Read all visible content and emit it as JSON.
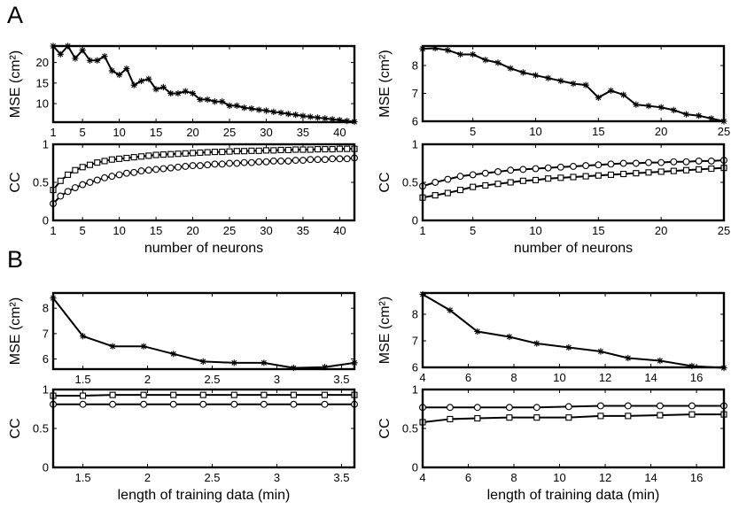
{
  "figure": {
    "panel_labels": [
      "A",
      "B"
    ],
    "line_color": "#000000"
  },
  "chart_data": [
    {
      "id": "A_left_mse",
      "type": "line",
      "title": "",
      "xlabel": "",
      "ylabel": "MSE (cm²)",
      "xlim": [
        1,
        42
      ],
      "ylim": [
        5.5,
        24
      ],
      "xticks": [
        1,
        5,
        10,
        15,
        20,
        25,
        30,
        35,
        40
      ],
      "yticks": [
        10,
        15,
        20
      ],
      "series": [
        {
          "marker": "star",
          "x": [
            1,
            2,
            3,
            4,
            5,
            6,
            7,
            8,
            9,
            10,
            11,
            12,
            13,
            14,
            15,
            16,
            17,
            18,
            19,
            20,
            21,
            22,
            23,
            24,
            25,
            26,
            27,
            28,
            29,
            30,
            31,
            32,
            33,
            34,
            35,
            36,
            37,
            38,
            39,
            40,
            41,
            42
          ],
          "y": [
            24,
            22,
            24,
            21,
            23,
            20.5,
            20.5,
            21.5,
            18,
            17,
            18.5,
            14.5,
            15.5,
            16,
            13.5,
            14,
            12.5,
            12.5,
            13,
            12.5,
            11,
            11,
            10.5,
            10.5,
            9.5,
            9.5,
            9,
            8.8,
            8.5,
            8.3,
            8,
            7.8,
            7.5,
            7.3,
            7,
            6.8,
            6.6,
            6.4,
            6.2,
            6,
            5.8,
            5.6
          ]
        }
      ]
    },
    {
      "id": "A_left_cc",
      "type": "line",
      "title": "",
      "xlabel": "number of neurons",
      "ylabel": "CC",
      "xlim": [
        1,
        42
      ],
      "ylim": [
        0,
        1
      ],
      "xticks": [
        1,
        5,
        10,
        15,
        20,
        25,
        30,
        35,
        40
      ],
      "yticks": [
        0,
        0.5,
        1
      ],
      "series": [
        {
          "marker": "square",
          "x": [
            1,
            2,
            3,
            4,
            5,
            6,
            7,
            8,
            9,
            10,
            11,
            12,
            13,
            14,
            15,
            16,
            17,
            18,
            19,
            20,
            21,
            22,
            23,
            24,
            25,
            26,
            27,
            28,
            29,
            30,
            31,
            32,
            33,
            34,
            35,
            36,
            37,
            38,
            39,
            40,
            41,
            42
          ],
          "y": [
            0.4,
            0.52,
            0.6,
            0.66,
            0.7,
            0.73,
            0.76,
            0.78,
            0.8,
            0.81,
            0.82,
            0.83,
            0.84,
            0.85,
            0.86,
            0.865,
            0.87,
            0.875,
            0.88,
            0.885,
            0.89,
            0.895,
            0.9,
            0.9,
            0.905,
            0.91,
            0.91,
            0.915,
            0.915,
            0.92,
            0.92,
            0.925,
            0.925,
            0.93,
            0.93,
            0.93,
            0.935,
            0.935,
            0.935,
            0.94,
            0.94,
            0.94
          ]
        },
        {
          "marker": "circle",
          "x": [
            1,
            2,
            3,
            4,
            5,
            6,
            7,
            8,
            9,
            10,
            11,
            12,
            13,
            14,
            15,
            16,
            17,
            18,
            19,
            20,
            21,
            22,
            23,
            24,
            25,
            26,
            27,
            28,
            29,
            30,
            31,
            32,
            33,
            34,
            35,
            36,
            37,
            38,
            39,
            40,
            41,
            42
          ],
          "y": [
            0.22,
            0.32,
            0.38,
            0.43,
            0.47,
            0.5,
            0.53,
            0.56,
            0.58,
            0.6,
            0.62,
            0.63,
            0.65,
            0.66,
            0.67,
            0.68,
            0.69,
            0.7,
            0.71,
            0.72,
            0.72,
            0.73,
            0.74,
            0.74,
            0.75,
            0.75,
            0.76,
            0.76,
            0.77,
            0.77,
            0.78,
            0.78,
            0.78,
            0.79,
            0.79,
            0.8,
            0.8,
            0.8,
            0.81,
            0.81,
            0.81,
            0.82
          ]
        }
      ]
    },
    {
      "id": "A_right_mse",
      "type": "line",
      "title": "",
      "xlabel": "",
      "ylabel": "MSE (cm²)",
      "xlim": [
        1,
        25
      ],
      "ylim": [
        6,
        8.7
      ],
      "xticks": [
        5,
        10,
        15,
        20,
        25
      ],
      "yticks": [
        6,
        7,
        8
      ],
      "series": [
        {
          "marker": "star",
          "x": [
            1,
            2,
            3,
            4,
            5,
            6,
            7,
            8,
            9,
            10,
            11,
            12,
            13,
            14,
            15,
            16,
            17,
            18,
            19,
            20,
            21,
            22,
            23,
            24,
            25
          ],
          "y": [
            8.6,
            8.62,
            8.55,
            8.4,
            8.4,
            8.2,
            8.1,
            7.9,
            7.75,
            7.65,
            7.55,
            7.45,
            7.35,
            7.3,
            6.85,
            7.1,
            6.95,
            6.6,
            6.55,
            6.5,
            6.4,
            6.25,
            6.2,
            6.1,
            6.0
          ]
        }
      ]
    },
    {
      "id": "A_right_cc",
      "type": "line",
      "title": "",
      "xlabel": "number of neurons",
      "ylabel": "CC",
      "xlim": [
        1,
        25
      ],
      "ylim": [
        0,
        1
      ],
      "xticks": [
        1,
        5,
        10,
        15,
        20,
        25
      ],
      "yticks": [
        0,
        0.5,
        1
      ],
      "series": [
        {
          "marker": "circle",
          "x": [
            1,
            2,
            3,
            4,
            5,
            6,
            7,
            8,
            9,
            10,
            11,
            12,
            13,
            14,
            15,
            16,
            17,
            18,
            19,
            20,
            21,
            22,
            23,
            24,
            25
          ],
          "y": [
            0.45,
            0.5,
            0.54,
            0.58,
            0.6,
            0.62,
            0.64,
            0.66,
            0.67,
            0.68,
            0.69,
            0.7,
            0.71,
            0.72,
            0.73,
            0.74,
            0.75,
            0.75,
            0.76,
            0.76,
            0.77,
            0.77,
            0.78,
            0.78,
            0.79
          ]
        },
        {
          "marker": "square",
          "x": [
            1,
            2,
            3,
            4,
            5,
            6,
            7,
            8,
            9,
            10,
            11,
            12,
            13,
            14,
            15,
            16,
            17,
            18,
            19,
            20,
            21,
            22,
            23,
            24,
            25
          ],
          "y": [
            0.3,
            0.33,
            0.36,
            0.4,
            0.44,
            0.46,
            0.48,
            0.5,
            0.52,
            0.53,
            0.55,
            0.56,
            0.57,
            0.58,
            0.59,
            0.6,
            0.61,
            0.62,
            0.63,
            0.64,
            0.65,
            0.66,
            0.67,
            0.68,
            0.69
          ]
        }
      ]
    },
    {
      "id": "B_left_mse",
      "type": "line",
      "title": "",
      "xlabel": "",
      "ylabel": "MSE (cm²)",
      "xlim": [
        1.27,
        3.6
      ],
      "ylim": [
        5.6,
        8.6
      ],
      "xticks": [
        1.5,
        2,
        2.5,
        3,
        3.5
      ],
      "yticks": [
        6,
        7,
        8
      ],
      "series": [
        {
          "marker": "star",
          "x": [
            1.27,
            1.5,
            1.73,
            1.97,
            2.2,
            2.43,
            2.67,
            2.9,
            3.13,
            3.37,
            3.6
          ],
          "y": [
            8.4,
            6.9,
            6.5,
            6.5,
            6.2,
            5.9,
            5.85,
            5.85,
            5.65,
            5.68,
            5.85
          ]
        }
      ]
    },
    {
      "id": "B_left_cc",
      "type": "line",
      "title": "",
      "xlabel": "length of training data (min)",
      "ylabel": "CC",
      "xlim": [
        1.27,
        3.6
      ],
      "ylim": [
        0,
        1
      ],
      "xticks": [
        1.5,
        2,
        2.5,
        3,
        3.5
      ],
      "yticks": [
        0,
        0.5,
        1
      ],
      "series": [
        {
          "marker": "square",
          "x": [
            1.27,
            1.5,
            1.73,
            1.97,
            2.2,
            2.43,
            2.67,
            2.9,
            3.13,
            3.37,
            3.6
          ],
          "y": [
            0.92,
            0.92,
            0.93,
            0.93,
            0.93,
            0.93,
            0.93,
            0.93,
            0.93,
            0.93,
            0.93
          ]
        },
        {
          "marker": "circle",
          "x": [
            1.27,
            1.5,
            1.73,
            1.97,
            2.2,
            2.43,
            2.67,
            2.9,
            3.13,
            3.37,
            3.6
          ],
          "y": [
            0.81,
            0.81,
            0.81,
            0.81,
            0.81,
            0.81,
            0.81,
            0.81,
            0.81,
            0.81,
            0.81
          ]
        }
      ]
    },
    {
      "id": "B_right_mse",
      "type": "line",
      "title": "",
      "xlabel": "",
      "ylabel": "MSE (cm²)",
      "xlim": [
        4,
        17.2
      ],
      "ylim": [
        6,
        8.8
      ],
      "xticks": [
        4,
        6,
        8,
        10,
        12,
        14,
        16
      ],
      "yticks": [
        6,
        7,
        8
      ],
      "series": [
        {
          "marker": "star",
          "x": [
            4,
            5.2,
            6.4,
            7.8,
            9,
            10.4,
            11.8,
            13,
            14.4,
            15.8,
            17.2
          ],
          "y": [
            8.75,
            8.15,
            7.35,
            7.15,
            6.9,
            6.75,
            6.6,
            6.35,
            6.25,
            6.05,
            5.98
          ]
        }
      ]
    },
    {
      "id": "B_right_cc",
      "type": "line",
      "title": "",
      "xlabel": "length of training data (min)",
      "ylabel": "CC",
      "xlim": [
        4,
        17.2
      ],
      "ylim": [
        0,
        1
      ],
      "xticks": [
        4,
        6,
        8,
        10,
        12,
        14,
        16
      ],
      "yticks": [
        0,
        0.5,
        1
      ],
      "series": [
        {
          "marker": "circle",
          "x": [
            4,
            5.2,
            6.4,
            7.8,
            9,
            10.4,
            11.8,
            13,
            14.4,
            15.8,
            17.2
          ],
          "y": [
            0.77,
            0.77,
            0.77,
            0.77,
            0.77,
            0.78,
            0.79,
            0.79,
            0.79,
            0.79,
            0.79
          ]
        },
        {
          "marker": "square",
          "x": [
            4,
            5.2,
            6.4,
            7.8,
            9,
            10.4,
            11.8,
            13,
            14.4,
            15.8,
            17.2
          ],
          "y": [
            0.58,
            0.62,
            0.63,
            0.64,
            0.64,
            0.64,
            0.66,
            0.66,
            0.67,
            0.68,
            0.68
          ]
        }
      ]
    }
  ]
}
